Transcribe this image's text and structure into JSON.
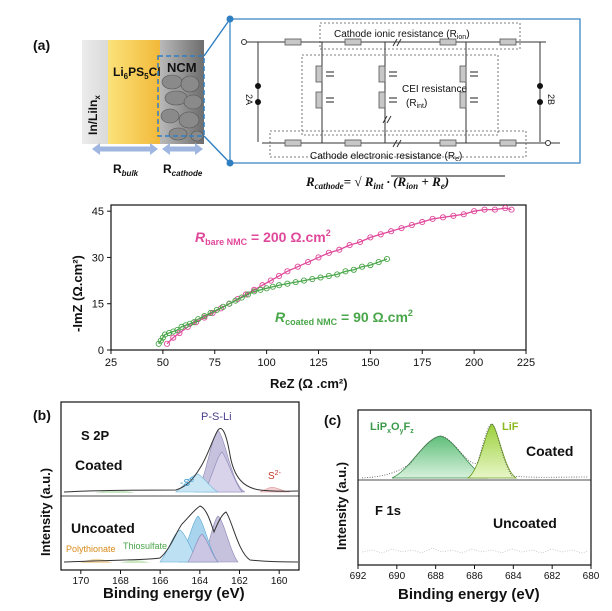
{
  "panel_a": {
    "label": "(a)",
    "anode_label": "In/LiIn",
    "anode_sub": "x",
    "electrolyte_label_parts": [
      "Li",
      "6",
      "PS",
      "5",
      "Cl"
    ],
    "cathode_label": "NCM",
    "rbulk": "R",
    "rbulk_sub": "bulk",
    "rcathode": "R",
    "rcathode_sub": "cathode",
    "circuit": {
      "ionic": "Cathode ionic resistance (R",
      "ionic_sub": "ion",
      "cei_line1": "CEI resistance",
      "cei_r": "(R",
      "cei_sub": "int",
      "electronic": "Cathode electronic resistance (R",
      "electronic_sub": "e",
      "left_term": "2A",
      "right_term": "2B"
    },
    "equation": {
      "lhs": "R",
      "lhs_sub": "cathode",
      "rhs": "= √ R",
      "rhs_sub1": "int",
      "rhs_mid": " · (R",
      "rhs_sub2": "ion",
      "rhs_plus": " + R",
      "rhs_sub3": "e",
      "rhs_end": ")"
    }
  },
  "chart_data": [
    {
      "type": "scatter",
      "title": "",
      "xlabel": "ReZ (Ω .cm²)",
      "ylabel": "-ImZ (Ω.cm²)",
      "xlim": [
        25,
        225
      ],
      "ylim": [
        0,
        47
      ],
      "xticks": [
        "25",
        "50",
        "75",
        "100",
        "125",
        "150",
        "175",
        "200",
        "225"
      ],
      "yticks": [
        "0",
        "15",
        "30",
        "45"
      ],
      "series": [
        {
          "name": "bare NMC",
          "color": "#e0489b",
          "x": [
            52,
            55,
            58,
            62,
            66,
            70,
            74,
            78,
            82,
            86,
            90,
            94,
            98,
            102,
            106,
            110,
            115,
            120,
            125,
            130,
            135,
            140,
            145,
            150,
            155,
            160,
            165,
            170,
            175,
            180,
            185,
            190,
            195,
            200,
            205,
            210,
            215,
            218
          ],
          "y": [
            2,
            4,
            5.5,
            7.5,
            9,
            10.5,
            12,
            13.5,
            15,
            16.5,
            18,
            19.5,
            21,
            22.5,
            24,
            25.5,
            27,
            28.5,
            30,
            31.5,
            32.5,
            34,
            35,
            36.5,
            37.5,
            38.5,
            39.5,
            40.5,
            41.5,
            42.5,
            43,
            43.5,
            44,
            45,
            45.5,
            45.5,
            46,
            45.5
          ]
        },
        {
          "name": "coated NMC",
          "color": "#4aa64a",
          "x": [
            48,
            49,
            50,
            51,
            53,
            55,
            57,
            59,
            61,
            63,
            65,
            67,
            70,
            73,
            76,
            79,
            82,
            85,
            88,
            91,
            94,
            97,
            100,
            103,
            106,
            110,
            114,
            118,
            122,
            126,
            130,
            134,
            138,
            142,
            146,
            150,
            154,
            158
          ],
          "y": [
            2,
            3,
            4,
            5,
            5.5,
            6,
            6.5,
            7.5,
            8,
            8.5,
            9,
            10,
            11,
            12,
            13,
            14,
            15,
            16,
            17,
            18,
            19,
            19.5,
            20,
            20.5,
            21,
            21.5,
            22,
            22.5,
            23,
            23.5,
            24,
            24.5,
            25.5,
            26,
            27,
            27.5,
            28.5,
            29.5
          ]
        }
      ],
      "annotations": [
        {
          "text": "R",
          "sub": "bare NMC",
          "rest": " = 200 Ω.cm",
          "sup": "2"
        },
        {
          "text": "R",
          "sub": "coated NMC",
          "rest": " = 90 Ω.cm",
          "sup": "2"
        }
      ]
    },
    {
      "type": "area",
      "panel": "(b)",
      "title": "S 2P",
      "xlabel": "Binding energy (eV)",
      "ylabel": "Intensity (a.u.)",
      "xlim": [
        171,
        159
      ],
      "xticks": [
        "170",
        "168",
        "166",
        "164",
        "162",
        "160"
      ],
      "labels": {
        "top": "Coated",
        "bottom": "Uncoated",
        "pslI": "P-S-Li",
        "s0": "-S",
        "s0_sup": "0",
        "s2": "S",
        "s2_sup": "2-",
        "poly": "Polythionate",
        "thio": "Thiosulfate"
      }
    },
    {
      "type": "area",
      "panel": "(c)",
      "title": "F 1s",
      "xlabel": "Binding energy (eV)",
      "ylabel": "Intensity (a.u.)",
      "xlim": [
        692,
        680
      ],
      "xticks": [
        "692",
        "690",
        "688",
        "686",
        "684",
        "682",
        "680"
      ],
      "labels": {
        "top": "Coated",
        "bottom": "Uncoated",
        "lipxoyfz": "LiP",
        "lif": "LiF"
      }
    }
  ]
}
